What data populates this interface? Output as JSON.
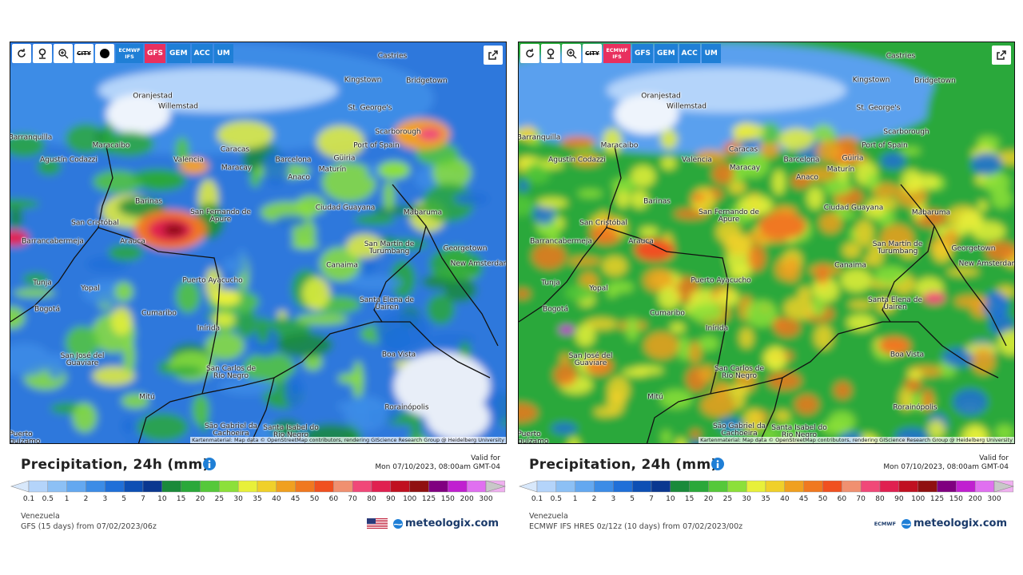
{
  "map_labels": [
    "Castries",
    "Kingstown",
    "Bridgetown",
    "Oranjestad",
    "Willemstad",
    "St. George's",
    "Scarborough",
    "Port of Spain",
    "Barranquilla",
    "Maracaibo",
    "Caracas",
    "Agustín Codazzi",
    "Valencia",
    "Barcelona",
    "Güiria",
    "Maracay",
    "Maturín",
    "Anaco",
    "Barinas",
    "Ciudad Guayana",
    "Mabaruma",
    "San Fernando de Apure",
    "San Cristóbal",
    "Arauca",
    "Barrancabermeja",
    "San Martín de Turumbang",
    "Georgetown",
    "New Amsterdam",
    "Canaima",
    "Tunja",
    "Yopal",
    "Puerto Ayacucho",
    "Bogotá",
    "Santa Elena de Uairen",
    "Cumaribo",
    "Inírida",
    "Boa Vista",
    "San José del Guaviare",
    "San Carlos de Río Negro",
    "Mitú",
    "Rorainópolis",
    "São Gabriel da Cachoeira",
    "Santa Isabel do Rio Negro",
    "Puerto Leguízamo"
  ],
  "attribution": "Kartenmaterial: Map data © OpenStreetMap contributors, rendering GIScience Research Group @ Heidelberg University",
  "legend": {
    "ticks": [
      "0.1",
      "0.5",
      "1",
      "2",
      "3",
      "5",
      "7",
      "10",
      "15",
      "20",
      "25",
      "30",
      "35",
      "40",
      "45",
      "50",
      "60",
      "70",
      "80",
      "90",
      "100",
      "125",
      "150",
      "200",
      "300"
    ],
    "colors": [
      "#d8e8fb",
      "#b4d4fa",
      "#8cc0f5",
      "#64a8f0",
      "#3c8ce6",
      "#1f6fd8",
      "#0d4fb4",
      "#0a3790",
      "#1a8a3a",
      "#2aa83a",
      "#55c83a",
      "#8ce03a",
      "#e8f03a",
      "#f0d02a",
      "#f0a020",
      "#f07820",
      "#f05020",
      "#f09070",
      "#f04878",
      "#e02050",
      "#c01020",
      "#901010",
      "#800080",
      "#c020d0",
      "#e070f0",
      "#f0b0f0",
      "#c8c8c8"
    ]
  },
  "panels": [
    {
      "toolbar": {
        "city": "CITY",
        "models": [
          "ECMWF IFS",
          "GFS",
          "GEM",
          "ACC",
          "UM"
        ],
        "active": 1
      },
      "title": "Precipitation, 24h (mm)",
      "valid_label": "Valid for",
      "valid_time": "Mon 07/10/2023, 08:00am GMT-04",
      "region": "Venezuela",
      "model_run": "GFS (15 days) from 07/02/2023/06z",
      "logo": "meteologix.com"
    },
    {
      "toolbar": {
        "city": "CITY",
        "models": [
          "ECMWF IFS",
          "GFS",
          "GEM",
          "ACC",
          "UM"
        ],
        "active": 0
      },
      "title": "Precipitation, 24h (mm)",
      "valid_label": "Valid for",
      "valid_time": "Mon 07/10/2023, 08:00am GMT-04",
      "region": "Venezuela",
      "model_run": "ECMWF IFS HRES 0z/12z (10 days) from 07/02/2023/00z",
      "logo": "meteologix.com",
      "model_logo": "ECMWF"
    }
  ]
}
